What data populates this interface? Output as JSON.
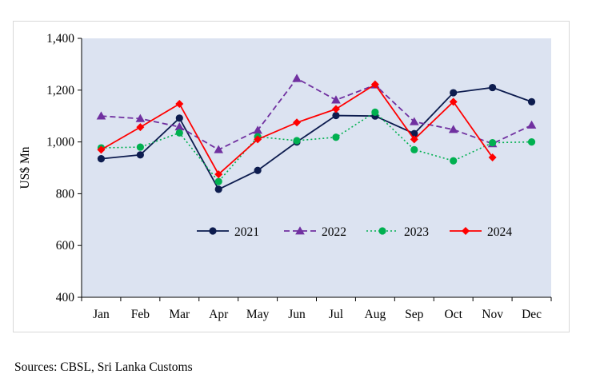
{
  "chart_data": {
    "type": "line",
    "categories": [
      "Jan",
      "Feb",
      "Mar",
      "Apr",
      "May",
      "Jun",
      "Jul",
      "Aug",
      "Sep",
      "Oct",
      "Nov",
      "Dec"
    ],
    "ylabel": "US$ Mn",
    "xlabel": "",
    "ylim": [
      400,
      1400
    ],
    "yticks": [
      400,
      600,
      800,
      1000,
      1200,
      1400
    ],
    "ytick_labels": [
      "400",
      "600",
      "800",
      "1,000",
      "1,200",
      "1,400"
    ],
    "grid": false,
    "legend_position": "center-right",
    "plot_background": "#dce3f1",
    "series": [
      {
        "name": "2021",
        "color": "#0d1c4f",
        "line": "solid",
        "marker": "circle",
        "values": [
          935,
          950,
          1092,
          817,
          890,
          1000,
          1102,
          1100,
          1032,
          1190,
          1210,
          1155
        ]
      },
      {
        "name": "2022",
        "color": "#7030a0",
        "line": "dashed",
        "marker": "triangle",
        "values": [
          1100,
          1090,
          1058,
          970,
          1045,
          1245,
          1162,
          1220,
          1078,
          1048,
          993,
          1065
        ]
      },
      {
        "name": "2023",
        "color": "#00b050",
        "line": "dotted",
        "marker": "circle",
        "values": [
          977,
          980,
          1035,
          847,
          1020,
          1005,
          1018,
          1115,
          970,
          927,
          997,
          1000
        ]
      },
      {
        "name": "2024",
        "color": "#ff0000",
        "line": "solid",
        "marker": "diamond",
        "values": [
          970,
          1057,
          1147,
          875,
          1010,
          1075,
          1127,
          1222,
          1010,
          1155,
          940,
          null
        ]
      }
    ]
  },
  "source_text": "Sources: CBSL, Sri Lanka Customs"
}
